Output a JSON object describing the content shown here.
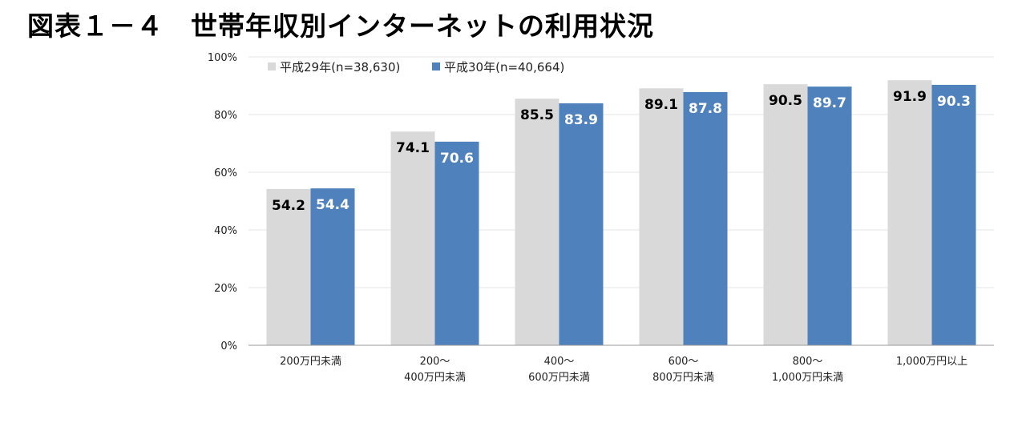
{
  "title": "図表１－４　世帯年収別インターネットの利用状況",
  "colors": {
    "series1": "#d9d9d9",
    "series2": "#4f81bd",
    "grid": "#e6e6e6",
    "axis": "#999999"
  },
  "chart_data": {
    "type": "bar",
    "title": "図表１－４　世帯年収別インターネットの利用状況",
    "categories": [
      [
        "200万円未満"
      ],
      [
        "200～",
        "400万円未満"
      ],
      [
        "400～",
        "600万円未満"
      ],
      [
        "600～",
        "800万円未満"
      ],
      [
        "800～",
        "1,000万円未満"
      ],
      [
        "1,000万円以上"
      ]
    ],
    "series": [
      {
        "name": "平成29年(n=38,630)",
        "values": [
          54.2,
          74.1,
          85.5,
          89.1,
          90.5,
          91.9
        ]
      },
      {
        "name": "平成30年(n=40,664)",
        "values": [
          54.4,
          70.6,
          83.9,
          87.8,
          89.7,
          90.3
        ]
      }
    ],
    "ylim": [
      0,
      100
    ],
    "yticks": [
      "0%",
      "20%",
      "40%",
      "60%",
      "80%",
      "100%"
    ],
    "xlabel": "",
    "ylabel": "",
    "grid": true,
    "legend": "top-left"
  }
}
